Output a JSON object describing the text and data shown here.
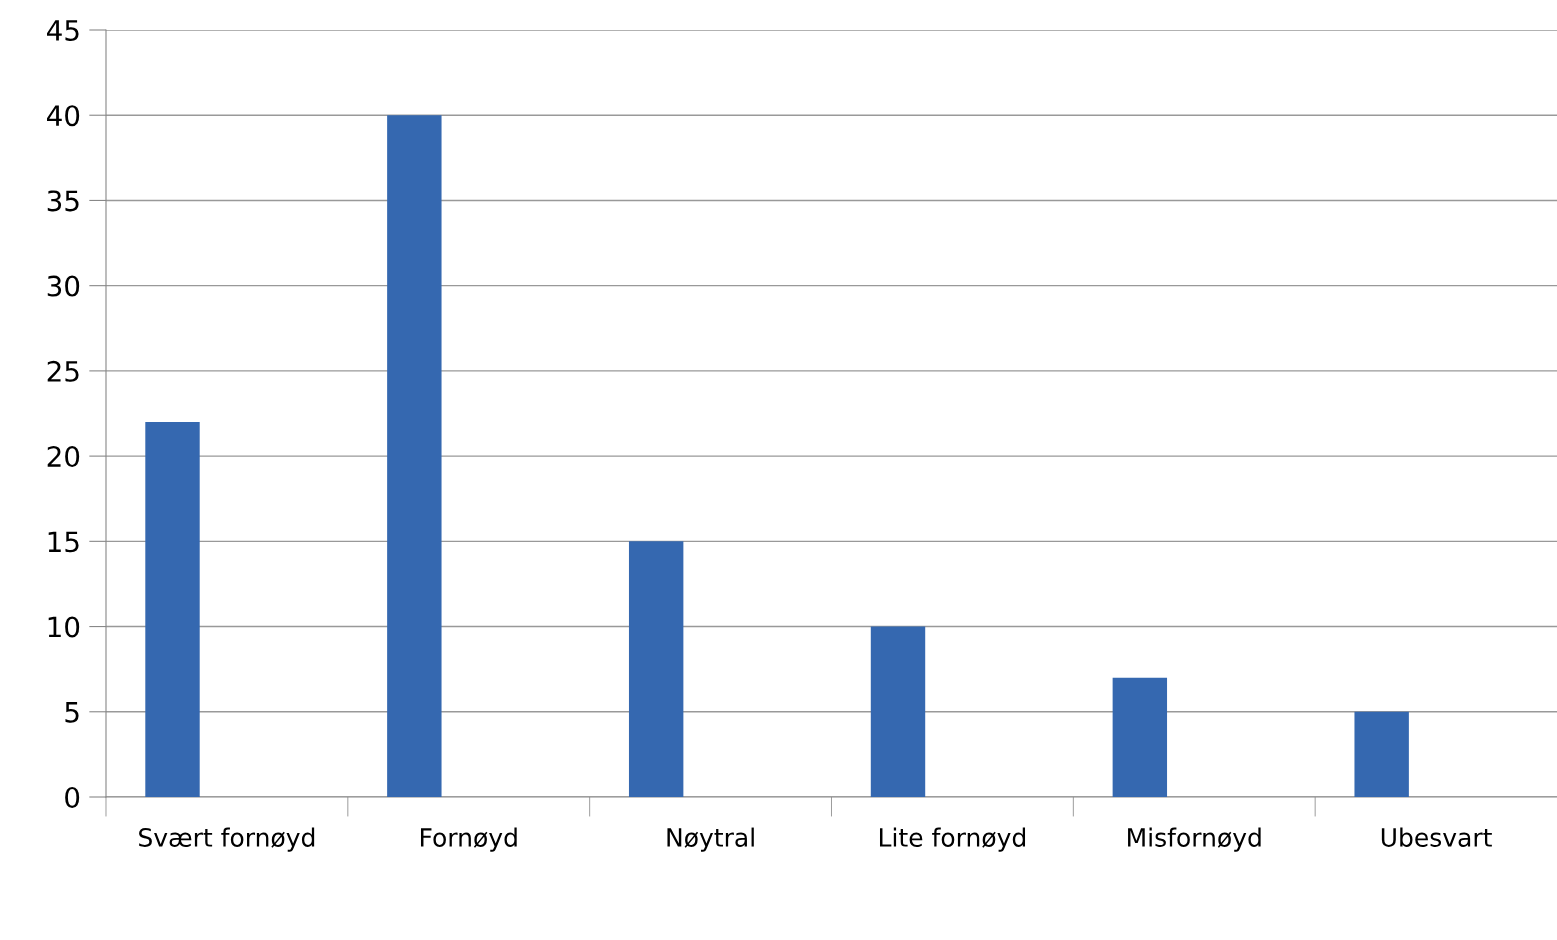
{
  "chart_data": {
    "type": "bar",
    "categories": [
      "Svært fornøyd",
      "Fornøyd",
      "Nøytral",
      "Lite fornøyd",
      "Misfornøyd",
      "Ubesvart"
    ],
    "values": [
      22,
      40,
      15,
      10,
      7,
      5
    ],
    "color": "#3568b0",
    "ylim": [
      0,
      45
    ],
    "yticks": [
      0,
      5,
      10,
      15,
      20,
      25,
      30,
      35,
      40,
      45
    ],
    "grid": "y",
    "legend": false
  }
}
